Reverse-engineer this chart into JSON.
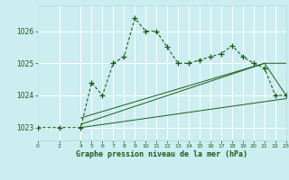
{
  "title": "Graphe pression niveau de la mer (hPa)",
  "bg_color": "#cceef0",
  "grid_color": "#aadddd",
  "line_color": "#1a5c1a",
  "xlim": [
    0,
    23
  ],
  "ylim": [
    1022.6,
    1026.8
  ],
  "yticks": [
    1023,
    1024,
    1025,
    1026
  ],
  "xticks": [
    0,
    2,
    4,
    5,
    6,
    7,
    8,
    9,
    10,
    11,
    12,
    13,
    14,
    15,
    16,
    17,
    18,
    19,
    20,
    21,
    22,
    23
  ],
  "main_x": [
    0,
    2,
    4,
    5,
    6,
    7,
    8,
    9,
    10,
    11,
    12,
    13,
    14,
    15,
    16,
    17,
    18,
    19,
    20,
    21,
    22,
    23
  ],
  "main_y": [
    1023.0,
    1023.0,
    1023.0,
    1024.4,
    1024.0,
    1025.0,
    1025.2,
    1026.4,
    1026.0,
    1026.0,
    1025.5,
    1025.0,
    1025.0,
    1025.1,
    1025.2,
    1025.3,
    1025.55,
    1025.2,
    1025.0,
    1024.85,
    1024.0,
    1024.0
  ],
  "trend1_x": [
    4,
    23
  ],
  "trend1_y": [
    1023.0,
    1023.9
  ],
  "trend2_x": [
    4,
    21,
    23
  ],
  "trend2_y": [
    1023.1,
    1025.0,
    1025.0
  ],
  "trend3_x": [
    4,
    21,
    23
  ],
  "trend3_y": [
    1023.3,
    1025.0,
    1024.0
  ]
}
